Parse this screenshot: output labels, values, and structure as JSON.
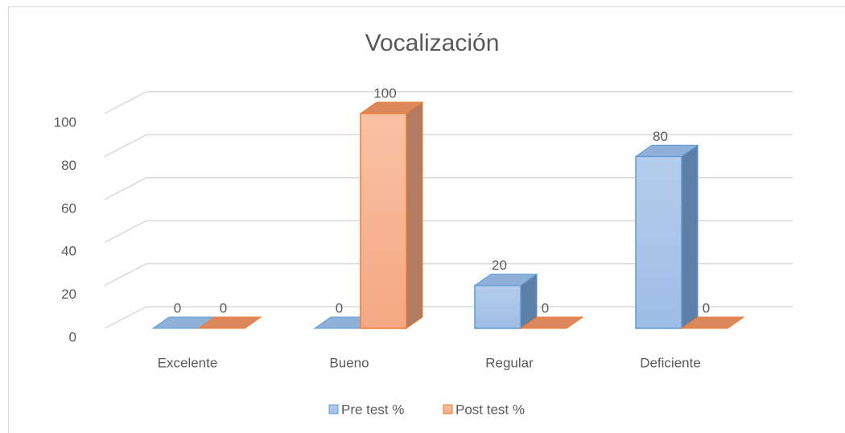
{
  "chart_data": {
    "type": "bar3d",
    "title": "Vocalización",
    "categories": [
      "Excelente",
      "Bueno",
      "Regular",
      "Deficiente"
    ],
    "series": [
      {
        "name": "Pre test %",
        "color": "#5b9bd5",
        "values": [
          0,
          0,
          20,
          80
        ]
      },
      {
        "name": "Post test %",
        "color": "#ed7d31",
        "values": [
          0,
          100,
          0,
          0
        ]
      }
    ],
    "ylim": [
      0,
      100
    ],
    "yticks": [
      0,
      20,
      40,
      60,
      80,
      100
    ],
    "grid": true,
    "legend": "bottom"
  }
}
